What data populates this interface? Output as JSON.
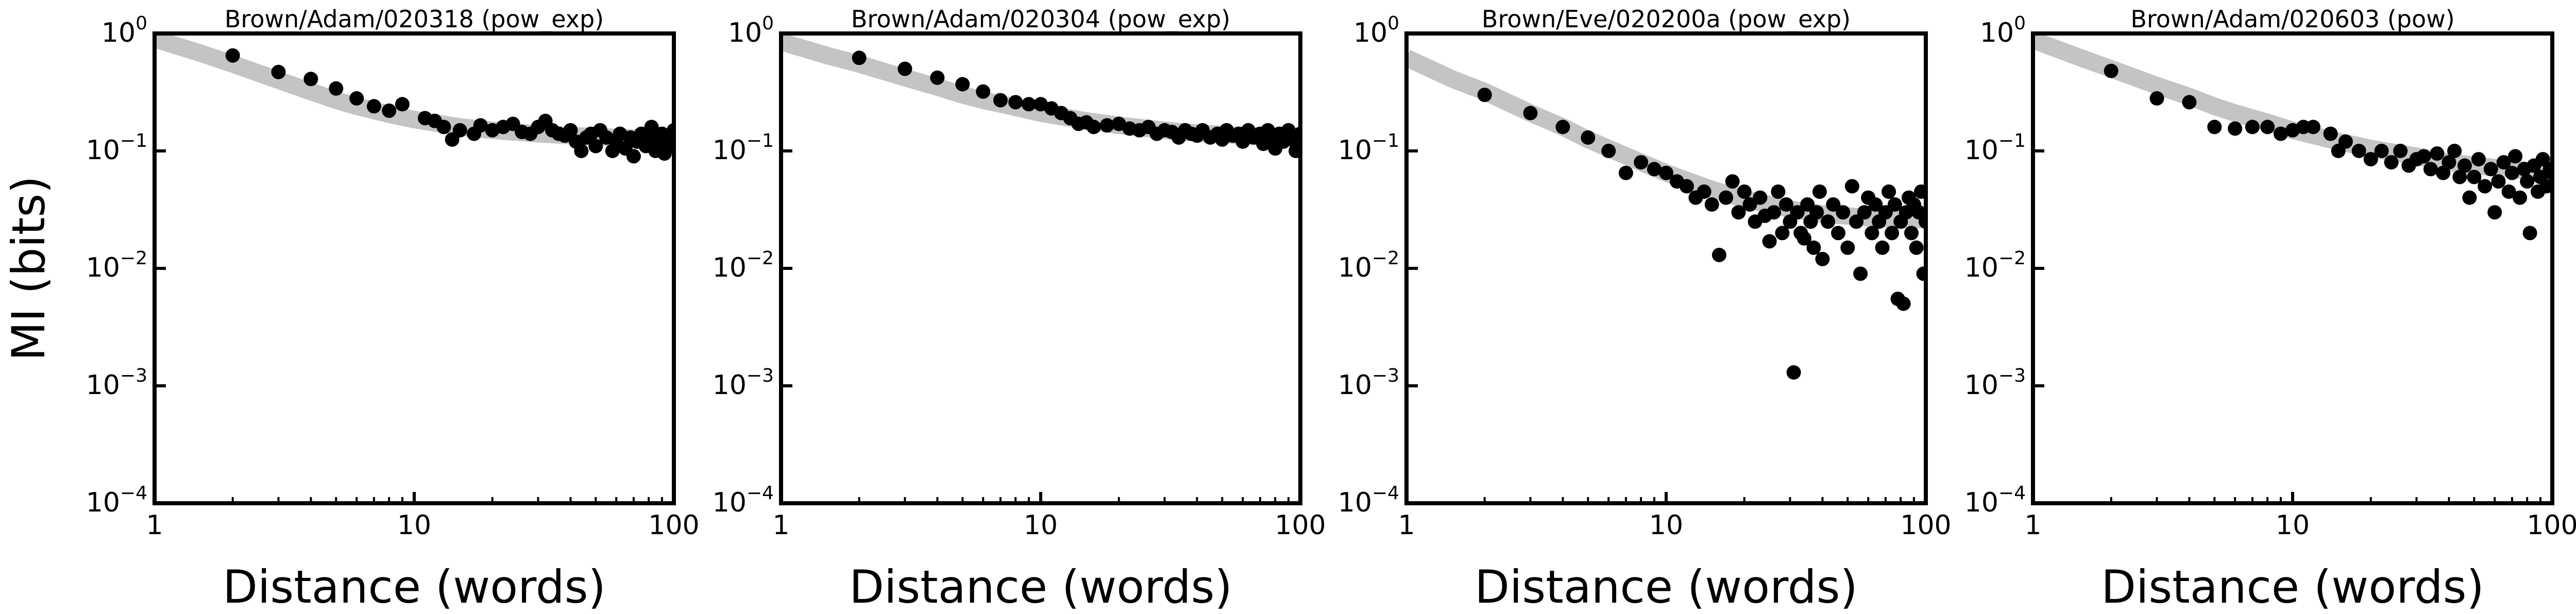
{
  "figure": {
    "ylabel": "MI (bits)",
    "xlabel": "Distance (words)"
  },
  "chart_data": [
    {
      "type": "scatter",
      "title": "Brown/Adam/020318 (pow_exp)",
      "xlabel": "Distance (words)",
      "ylabel": "MI (bits)",
      "xscale": "log",
      "yscale": "log",
      "xlim": [
        1,
        100
      ],
      "ylim": [
        0.0001,
        1
      ],
      "x_ticks": [
        "1",
        "10",
        "100"
      ],
      "y_ticks": [
        {
          "base": "10",
          "exp": "0"
        },
        {
          "base": "10",
          "exp": "−1"
        },
        {
          "base": "10",
          "exp": "−2"
        },
        {
          "base": "10",
          "exp": "−3"
        },
        {
          "base": "10",
          "exp": "−4"
        }
      ],
      "grid": false,
      "fit": {
        "x": [
          1,
          1.5,
          2,
          3,
          4,
          5,
          6,
          8,
          10,
          15,
          20,
          30,
          40,
          60,
          80,
          100
        ],
        "y": [
          0.9,
          0.68,
          0.55,
          0.4,
          0.32,
          0.27,
          0.24,
          0.205,
          0.185,
          0.16,
          0.15,
          0.14,
          0.135,
          0.13,
          0.128,
          0.127
        ]
      },
      "points": [
        [
          2,
          0.65
        ],
        [
          3,
          0.47
        ],
        [
          4,
          0.41
        ],
        [
          5,
          0.34
        ],
        [
          6,
          0.28
        ],
        [
          7,
          0.24
        ],
        [
          8,
          0.22
        ],
        [
          9,
          0.25
        ],
        [
          11,
          0.19
        ],
        [
          12,
          0.18
        ],
        [
          13,
          0.16
        ],
        [
          14,
          0.125
        ],
        [
          15,
          0.15
        ],
        [
          17,
          0.14
        ],
        [
          18,
          0.165
        ],
        [
          20,
          0.15
        ],
        [
          22,
          0.16
        ],
        [
          24,
          0.17
        ],
        [
          26,
          0.145
        ],
        [
          28,
          0.14
        ],
        [
          30,
          0.16
        ],
        [
          32,
          0.18
        ],
        [
          34,
          0.15
        ],
        [
          36,
          0.14
        ],
        [
          38,
          0.135
        ],
        [
          40,
          0.15
        ],
        [
          42,
          0.12
        ],
        [
          44,
          0.1
        ],
        [
          46,
          0.13
        ],
        [
          48,
          0.14
        ],
        [
          50,
          0.11
        ],
        [
          52,
          0.15
        ],
        [
          55,
          0.13
        ],
        [
          58,
          0.1
        ],
        [
          60,
          0.12
        ],
        [
          62,
          0.14
        ],
        [
          65,
          0.105
        ],
        [
          68,
          0.13
        ],
        [
          70,
          0.09
        ],
        [
          72,
          0.12
        ],
        [
          75,
          0.14
        ],
        [
          78,
          0.11
        ],
        [
          80,
          0.13
        ],
        [
          82,
          0.16
        ],
        [
          85,
          0.1
        ],
        [
          88,
          0.12
        ],
        [
          90,
          0.14
        ],
        [
          92,
          0.095
        ],
        [
          95,
          0.13
        ],
        [
          98,
          0.11
        ],
        [
          100,
          0.15
        ]
      ]
    },
    {
      "type": "scatter",
      "title": "Brown/Adam/020304 (pow_exp)",
      "xlabel": "Distance (words)",
      "ylabel": "",
      "xscale": "log",
      "yscale": "log",
      "xlim": [
        1,
        100
      ],
      "ylim": [
        0.0001,
        1
      ],
      "x_ticks": [
        "1",
        "10",
        "100"
      ],
      "y_ticks": [
        {
          "base": "10",
          "exp": "0"
        },
        {
          "base": "10",
          "exp": "−1"
        },
        {
          "base": "10",
          "exp": "−2"
        },
        {
          "base": "10",
          "exp": "−3"
        },
        {
          "base": "10",
          "exp": "−4"
        }
      ],
      "grid": false,
      "fit": {
        "x": [
          1,
          1.5,
          2,
          3,
          4,
          5,
          6,
          8,
          10,
          15,
          20,
          30,
          40,
          60,
          80,
          100
        ],
        "y": [
          0.85,
          0.65,
          0.55,
          0.42,
          0.35,
          0.3,
          0.27,
          0.235,
          0.21,
          0.18,
          0.165,
          0.15,
          0.142,
          0.135,
          0.132,
          0.13
        ]
      },
      "points": [
        [
          2,
          0.62
        ],
        [
          3,
          0.5
        ],
        [
          4,
          0.42
        ],
        [
          5,
          0.37
        ],
        [
          6,
          0.32
        ],
        [
          7,
          0.27
        ],
        [
          8,
          0.26
        ],
        [
          9,
          0.25
        ],
        [
          10,
          0.25
        ],
        [
          11,
          0.23
        ],
        [
          12,
          0.21
        ],
        [
          13,
          0.19
        ],
        [
          14,
          0.17
        ],
        [
          15,
          0.175
        ],
        [
          16,
          0.16
        ],
        [
          18,
          0.165
        ],
        [
          20,
          0.17
        ],
        [
          22,
          0.155
        ],
        [
          24,
          0.15
        ],
        [
          26,
          0.16
        ],
        [
          28,
          0.14
        ],
        [
          30,
          0.15
        ],
        [
          32,
          0.145
        ],
        [
          34,
          0.13
        ],
        [
          36,
          0.15
        ],
        [
          38,
          0.14
        ],
        [
          40,
          0.135
        ],
        [
          42,
          0.15
        ],
        [
          45,
          0.13
        ],
        [
          48,
          0.14
        ],
        [
          50,
          0.125
        ],
        [
          52,
          0.15
        ],
        [
          55,
          0.135
        ],
        [
          58,
          0.14
        ],
        [
          60,
          0.12
        ],
        [
          63,
          0.15
        ],
        [
          66,
          0.13
        ],
        [
          70,
          0.14
        ],
        [
          72,
          0.115
        ],
        [
          75,
          0.15
        ],
        [
          78,
          0.13
        ],
        [
          80,
          0.105
        ],
        [
          83,
          0.14
        ],
        [
          86,
          0.12
        ],
        [
          90,
          0.15
        ],
        [
          93,
          0.125
        ],
        [
          96,
          0.1
        ],
        [
          100,
          0.14
        ]
      ]
    },
    {
      "type": "scatter",
      "title": "Brown/Eve/020200a (pow_exp)",
      "xlabel": "Distance (words)",
      "ylabel": "",
      "xscale": "log",
      "yscale": "log",
      "xlim": [
        1,
        100
      ],
      "ylim": [
        0.0001,
        1
      ],
      "x_ticks": [
        "1",
        "10",
        "100"
      ],
      "y_ticks": [
        {
          "base": "10",
          "exp": "0"
        },
        {
          "base": "10",
          "exp": "−1"
        },
        {
          "base": "10",
          "exp": "−2"
        },
        {
          "base": "10",
          "exp": "−3"
        },
        {
          "base": "10",
          "exp": "−4"
        }
      ],
      "grid": false,
      "fit": {
        "x": [
          1,
          1.5,
          2,
          3,
          4,
          5,
          6,
          8,
          10,
          15,
          20,
          30,
          40,
          60,
          80,
          100
        ],
        "y": [
          0.62,
          0.41,
          0.32,
          0.21,
          0.16,
          0.125,
          0.105,
          0.08,
          0.065,
          0.047,
          0.039,
          0.032,
          0.029,
          0.027,
          0.026,
          0.026
        ]
      },
      "points": [
        [
          2,
          0.3
        ],
        [
          3,
          0.21
        ],
        [
          4,
          0.16
        ],
        [
          5,
          0.13
        ],
        [
          6,
          0.1
        ],
        [
          7,
          0.065
        ],
        [
          8,
          0.08
        ],
        [
          9,
          0.07
        ],
        [
          10,
          0.065
        ],
        [
          11,
          0.055
        ],
        [
          12,
          0.05
        ],
        [
          13,
          0.04
        ],
        [
          14,
          0.045
        ],
        [
          15,
          0.035
        ],
        [
          16,
          0.013
        ],
        [
          17,
          0.04
        ],
        [
          18,
          0.055
        ],
        [
          19,
          0.03
        ],
        [
          20,
          0.045
        ],
        [
          21,
          0.035
        ],
        [
          22,
          0.025
        ],
        [
          23,
          0.04
        ],
        [
          24,
          0.028
        ],
        [
          25,
          0.017
        ],
        [
          26,
          0.03
        ],
        [
          27,
          0.045
        ],
        [
          28,
          0.02
        ],
        [
          29,
          0.035
        ],
        [
          30,
          0.025
        ],
        [
          31,
          0.0013
        ],
        [
          32,
          0.03
        ],
        [
          33,
          0.02
        ],
        [
          34,
          0.018
        ],
        [
          35,
          0.035
        ],
        [
          36,
          0.025
        ],
        [
          37,
          0.015
        ],
        [
          38,
          0.03
        ],
        [
          39,
          0.045
        ],
        [
          40,
          0.012
        ],
        [
          42,
          0.025
        ],
        [
          44,
          0.035
        ],
        [
          46,
          0.02
        ],
        [
          48,
          0.03
        ],
        [
          50,
          0.015
        ],
        [
          52,
          0.05
        ],
        [
          54,
          0.025
        ],
        [
          56,
          0.009
        ],
        [
          58,
          0.03
        ],
        [
          60,
          0.04
        ],
        [
          62,
          0.02
        ],
        [
          64,
          0.035
        ],
        [
          66,
          0.025
        ],
        [
          68,
          0.015
        ],
        [
          70,
          0.03
        ],
        [
          72,
          0.045
        ],
        [
          74,
          0.02
        ],
        [
          76,
          0.035
        ],
        [
          78,
          0.0055
        ],
        [
          80,
          0.025
        ],
        [
          82,
          0.005
        ],
        [
          84,
          0.03
        ],
        [
          86,
          0.04
        ],
        [
          88,
          0.02
        ],
        [
          90,
          0.035
        ],
        [
          92,
          0.015
        ],
        [
          94,
          0.03
        ],
        [
          96,
          0.045
        ],
        [
          98,
          0.009
        ],
        [
          100,
          0.025
        ]
      ]
    },
    {
      "type": "scatter",
      "title": "Brown/Adam/020603 (pow)",
      "xlabel": "Distance (words)",
      "ylabel": "",
      "xscale": "log",
      "yscale": "log",
      "xlim": [
        1,
        100
      ],
      "ylim": [
        0.0001,
        1
      ],
      "x_ticks": [
        "1",
        "10",
        "100"
      ],
      "y_ticks": [
        {
          "base": "10",
          "exp": "0"
        },
        {
          "base": "10",
          "exp": "−1"
        },
        {
          "base": "10",
          "exp": "−2"
        },
        {
          "base": "10",
          "exp": "−3"
        },
        {
          "base": "10",
          "exp": "−4"
        }
      ],
      "grid": false,
      "fit": {
        "x": [
          1,
          1.5,
          2,
          3,
          4,
          5,
          6,
          8,
          10,
          15,
          20,
          30,
          40,
          60,
          80,
          100
        ],
        "y": [
          0.88,
          0.63,
          0.5,
          0.36,
          0.29,
          0.24,
          0.21,
          0.175,
          0.15,
          0.12,
          0.105,
          0.09,
          0.08,
          0.072,
          0.068,
          0.065
        ]
      },
      "points": [
        [
          2,
          0.48
        ],
        [
          3,
          0.28
        ],
        [
          4,
          0.26
        ],
        [
          5,
          0.16
        ],
        [
          6,
          0.155
        ],
        [
          7,
          0.16
        ],
        [
          8,
          0.16
        ],
        [
          9,
          0.14
        ],
        [
          10,
          0.15
        ],
        [
          11,
          0.16
        ],
        [
          12,
          0.16
        ],
        [
          14,
          0.14
        ],
        [
          15,
          0.1
        ],
        [
          16,
          0.12
        ],
        [
          18,
          0.1
        ],
        [
          20,
          0.085
        ],
        [
          22,
          0.1
        ],
        [
          24,
          0.08
        ],
        [
          26,
          0.1
        ],
        [
          28,
          0.075
        ],
        [
          30,
          0.085
        ],
        [
          32,
          0.09
        ],
        [
          34,
          0.07
        ],
        [
          36,
          0.095
        ],
        [
          38,
          0.065
        ],
        [
          40,
          0.08
        ],
        [
          42,
          0.1
        ],
        [
          44,
          0.06
        ],
        [
          46,
          0.075
        ],
        [
          48,
          0.04
        ],
        [
          50,
          0.06
        ],
        [
          52,
          0.085
        ],
        [
          55,
          0.05
        ],
        [
          58,
          0.07
        ],
        [
          60,
          0.03
        ],
        [
          62,
          0.055
        ],
        [
          65,
          0.08
        ],
        [
          68,
          0.045
        ],
        [
          70,
          0.065
        ],
        [
          72,
          0.09
        ],
        [
          75,
          0.04
        ],
        [
          78,
          0.07
        ],
        [
          80,
          0.055
        ],
        [
          82,
          0.02
        ],
        [
          85,
          0.075
        ],
        [
          88,
          0.045
        ],
        [
          90,
          0.06
        ],
        [
          92,
          0.085
        ],
        [
          95,
          0.05
        ],
        [
          98,
          0.07
        ],
        [
          100,
          0.065
        ]
      ]
    }
  ]
}
